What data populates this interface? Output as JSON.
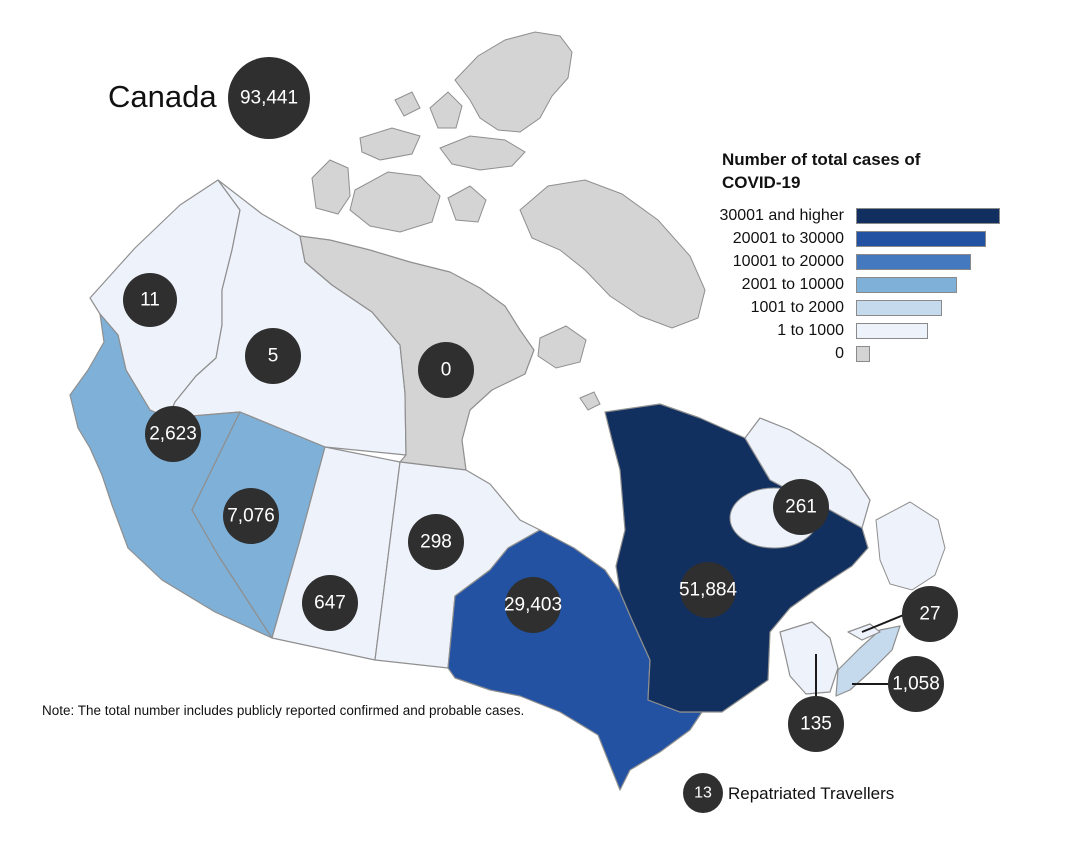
{
  "map": {
    "title": "Canada",
    "total_cases": "93,441",
    "legend": {
      "title": "Number of total cases of COVID-19",
      "items": [
        {
          "label": "30001 and higher",
          "color": "#12305f",
          "fraction": 1.0
        },
        {
          "label": "20001 to 30000",
          "color": "#2352a3",
          "fraction": 0.9
        },
        {
          "label": "10001 to 20000",
          "color": "#4479c0",
          "fraction": 0.8
        },
        {
          "label": "2001 to 10000",
          "color": "#7fb0d7",
          "fraction": 0.7
        },
        {
          "label": "1001 to 2000",
          "color": "#c6daed",
          "fraction": 0.6
        },
        {
          "label": "1 to 1000",
          "color": "#eef2fb",
          "fraction": 0.5
        },
        {
          "label": "0",
          "color": "#d4d4d4",
          "fraction": 0.1
        }
      ]
    },
    "regions": [
      {
        "key": "yukon",
        "cases": "11",
        "color": "#eef2fb"
      },
      {
        "key": "northwest-territories",
        "cases": "5",
        "color": "#eef2fb"
      },
      {
        "key": "nunavut",
        "cases": "0",
        "color": "#d4d4d4"
      },
      {
        "key": "british-columbia",
        "cases": "2,623",
        "color": "#7fb0d7"
      },
      {
        "key": "alberta",
        "cases": "7,076",
        "color": "#7fb0d7"
      },
      {
        "key": "saskatchewan",
        "cases": "647",
        "color": "#eef2fb"
      },
      {
        "key": "manitoba",
        "cases": "298",
        "color": "#eef2fb"
      },
      {
        "key": "ontario",
        "cases": "29,403",
        "color": "#2352a3"
      },
      {
        "key": "quebec",
        "cases": "51,884",
        "color": "#12305f"
      },
      {
        "key": "newfoundland-labrador",
        "cases": "261",
        "color": "#eef2fb"
      },
      {
        "key": "prince-edward-island",
        "cases": "27",
        "color": "#eef2fb"
      },
      {
        "key": "nova-scotia",
        "cases": "1,058",
        "color": "#c6daed"
      },
      {
        "key": "new-brunswick",
        "cases": "135",
        "color": "#eef2fb"
      },
      {
        "key": "repatriated-travellers",
        "cases": "13",
        "color": "#eef2fb"
      }
    ],
    "repatriated_label": "Repatriated Travellers",
    "note": "Note: The total number includes publicly reported confirmed and probable cases.",
    "water_color": "#ffffff"
  }
}
